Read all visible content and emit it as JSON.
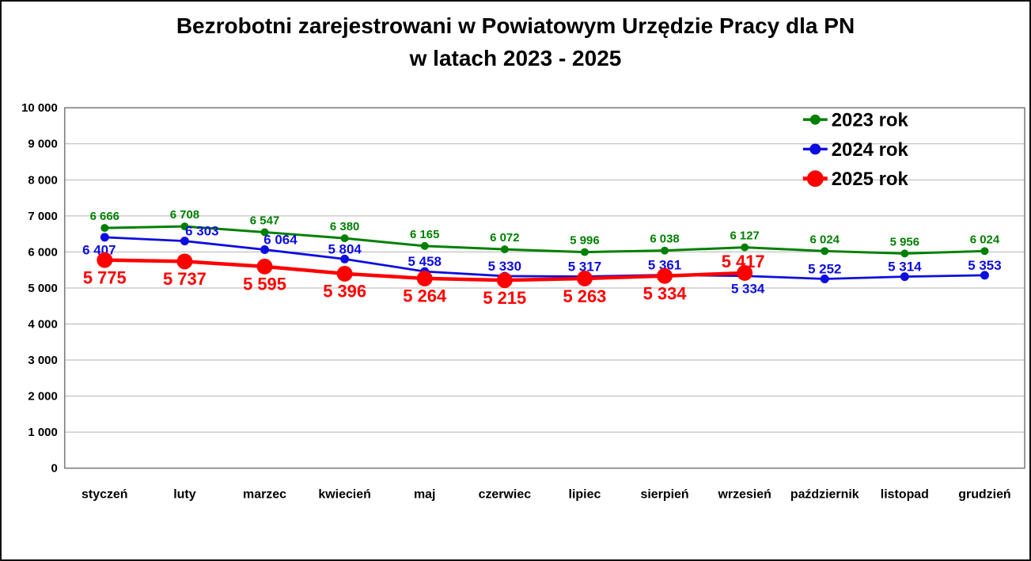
{
  "page": {
    "background": "#FFFFFF",
    "outer_border_color": "#111111"
  },
  "chart_data": {
    "type": "line",
    "title": "Bezrobotni zarejestrowani w Powiatowym Urzędzie Pracy dla PN w latach 2023 - 2025",
    "title_line1": "Bezrobotni zarejestrowani w Powiatowym Urzędzie Pracy dla PN",
    "title_line2": "w latach 2023 - 2025",
    "xlabel": "",
    "ylabel": "",
    "categories": [
      "styczeń",
      "luty",
      "marzec",
      "kwiecień",
      "maj",
      "czerwiec",
      "lipiec",
      "sierpień",
      "wrzesień",
      "październik",
      "listopad",
      "grudzień"
    ],
    "ylim": [
      0,
      10000
    ],
    "ytick_step": 1000,
    "ytick_labels": [
      "0",
      "1 000",
      "2 000",
      "3 000",
      "4 000",
      "5 000",
      "6 000",
      "7 000",
      "8 000",
      "9 000",
      "10 000"
    ],
    "grid": true,
    "grid_color": "#B3B3B3",
    "plot_border_color": "#7F7F7F",
    "axis_text_color": "#000000",
    "legend_position": "top-right-inside",
    "number_format": "space-thousands",
    "series": [
      {
        "name": "2023 rok",
        "color": "#008000",
        "values": [
          6666,
          6708,
          6547,
          6380,
          6165,
          6072,
          5996,
          6038,
          6127,
          6024,
          5956,
          6024
        ],
        "label_pos": [
          "above",
          "above",
          "above",
          "above",
          "above",
          "above",
          "above",
          "above",
          "above",
          "above",
          "above",
          "above"
        ],
        "label_dx": [
          0,
          0,
          0,
          0,
          0,
          0,
          0,
          0,
          0,
          0,
          0,
          0
        ],
        "style": {
          "line_width": 3,
          "marker_radius": 5,
          "label_font_size": 15,
          "label_offset_above": 10,
          "label_offset_below": 22,
          "legend_marker_radius": 6.5,
          "legend_line_width": 3.5
        }
      },
      {
        "name": "2024 rok",
        "color": "#0D0DE0",
        "values": [
          6407,
          6303,
          6064,
          5804,
          5458,
          5330,
          5317,
          5361,
          5334,
          5252,
          5314,
          5353
        ],
        "label_pos": [
          "below",
          "above",
          "above",
          "above",
          "above",
          "above",
          "above",
          "above",
          "below",
          "above",
          "above",
          "above"
        ],
        "label_dx": [
          -7,
          22,
          20,
          0,
          0,
          0,
          0,
          0,
          4,
          0,
          0,
          0
        ],
        "style": {
          "line_width": 2.8,
          "marker_radius": 5.5,
          "label_font_size": 17,
          "label_offset_above": 7,
          "label_offset_below": 22,
          "legend_marker_radius": 7,
          "legend_line_width": 3.5
        }
      },
      {
        "name": "2025 rok",
        "color": "#FE0000",
        "values": [
          5775,
          5737,
          5595,
          5396,
          5264,
          5215,
          5263,
          5334,
          5417
        ],
        "label_pos": [
          "below",
          "below",
          "below",
          "below",
          "below",
          "below",
          "below",
          "below",
          "above"
        ],
        "label_dx": [
          0,
          0,
          0,
          0,
          0,
          0,
          0,
          0,
          -2
        ],
        "style": {
          "line_width": 4.5,
          "marker_radius": 10,
          "label_font_size": 22,
          "label_offset_above": 7,
          "label_offset_below": 30,
          "legend_marker_radius": 10.5,
          "legend_line_width": 5
        }
      }
    ]
  }
}
